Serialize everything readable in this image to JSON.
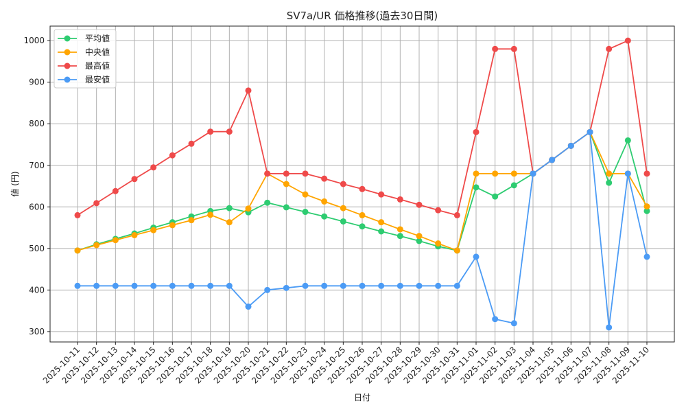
{
  "chart_data": {
    "type": "line",
    "title": "SV7a/UR 価格推移(過去30日間)",
    "xlabel": "日付",
    "ylabel": "値 (円)",
    "ylim": [
      275,
      1035
    ],
    "yticks": [
      300,
      400,
      500,
      600,
      700,
      800,
      900,
      1000
    ],
    "grid": true,
    "legend_position": "top-left",
    "categories": [
      "2025-10-11",
      "2025-10-12",
      "2025-10-13",
      "2025-10-14",
      "2025-10-15",
      "2025-10-16",
      "2025-10-17",
      "2025-10-18",
      "2025-10-19",
      "2025-10-20",
      "2025-10-21",
      "2025-10-22",
      "2025-10-23",
      "2025-10-24",
      "2025-10-25",
      "2025-10-26",
      "2025-10-27",
      "2025-10-28",
      "2025-10-29",
      "2025-10-30",
      "2025-10-31",
      "2025-11-01",
      "2025-11-02",
      "2025-11-03",
      "2025-11-04",
      "2025-11-05",
      "2025-11-06",
      "2025-11-07",
      "2025-11-08",
      "2025-11-09",
      "2025-11-10"
    ],
    "series": [
      {
        "name": "平均値",
        "color": "#2ecc71",
        "values": [
          495,
          510,
          523,
          536,
          550,
          563,
          577,
          590,
          597,
          587,
          610,
          599,
          588,
          577,
          565,
          553,
          541,
          530,
          518,
          505,
          495,
          647,
          625,
          652,
          680,
          713,
          747,
          780,
          658,
          760,
          590
        ]
      },
      {
        "name": "中央値",
        "color": "#ffa500",
        "values": [
          495,
          508,
          520,
          532,
          544,
          556,
          568,
          581,
          563,
          596,
          680,
          655,
          630,
          613,
          597,
          580,
          563,
          546,
          530,
          512,
          495,
          680,
          680,
          680,
          680,
          713,
          747,
          780,
          680,
          680,
          601
        ]
      },
      {
        "name": "最高値",
        "color": "#ef4a4a",
        "values": [
          580,
          609,
          638,
          667,
          695,
          724,
          752,
          781,
          781,
          880,
          680,
          680,
          680,
          668,
          655,
          643,
          630,
          618,
          605,
          592,
          580,
          780,
          980,
          980,
          680,
          713,
          747,
          780,
          980,
          1000,
          680
        ]
      },
      {
        "name": "最安値",
        "color": "#4b9bf5",
        "values": [
          410,
          410,
          410,
          410,
          410,
          410,
          410,
          410,
          410,
          360,
          400,
          405,
          410,
          410,
          410,
          410,
          410,
          410,
          410,
          410,
          410,
          480,
          330,
          320,
          680,
          713,
          747,
          780,
          310,
          680,
          480
        ]
      }
    ]
  }
}
